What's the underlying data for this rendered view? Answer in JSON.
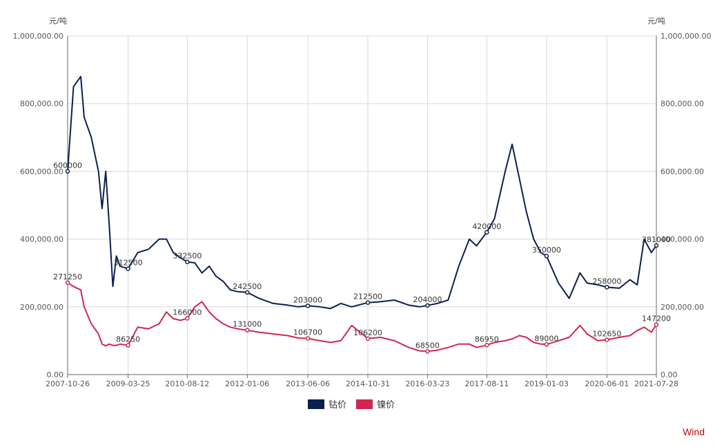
{
  "chart_data": {
    "type": "line",
    "ylabel_left": "元/吨",
    "ylabel_right": "元/吨",
    "ylim": [
      0,
      1000000
    ],
    "y_ticks": [
      "0.00",
      "200,000.00",
      "400,000.00",
      "600,000.00",
      "800,000.00",
      "1,000,000.00"
    ],
    "x_ticks": [
      "2007-10-26",
      "2009-03-25",
      "2010-08-12",
      "2012-01-06",
      "2013-06-06",
      "2014-10-31",
      "2016-03-23",
      "2017-08-11",
      "2019-01-03",
      "2020-06-01",
      "2021-07-28"
    ],
    "grid": true,
    "legend_position": "bottom",
    "x": [
      "2007-10-26",
      "2007-12",
      "2008-02",
      "2008-03",
      "2008-05",
      "2008-07",
      "2008-08",
      "2008-09",
      "2008-10",
      "2008-11",
      "2008-12",
      "2009-01",
      "2009-03-25",
      "2009-06",
      "2009-09",
      "2009-12",
      "2010-02",
      "2010-04",
      "2010-06",
      "2010-08-12",
      "2010-10",
      "2010-12",
      "2011-02",
      "2011-04",
      "2011-06",
      "2011-08",
      "2011-10",
      "2012-01-06",
      "2012-04",
      "2012-08",
      "2012-12",
      "2013-03",
      "2013-06-06",
      "2013-09",
      "2013-12",
      "2014-03",
      "2014-06",
      "2014-10-31",
      "2015-02",
      "2015-06",
      "2015-10",
      "2016-01",
      "2016-03-23",
      "2016-06",
      "2016-09",
      "2016-12",
      "2017-03",
      "2017-05",
      "2017-08-11",
      "2017-10",
      "2018-01",
      "2018-03",
      "2018-05",
      "2018-07",
      "2018-09",
      "2018-11",
      "2019-01-03",
      "2019-04",
      "2019-07",
      "2019-10",
      "2019-12",
      "2020-03",
      "2020-06-01",
      "2020-09",
      "2020-12",
      "2021-02",
      "2021-04",
      "2021-06",
      "2021-07-28"
    ],
    "series": [
      {
        "name": "钴价",
        "color": "#0b1f4e",
        "values": [
          600000,
          850000,
          880000,
          760000,
          700000,
          600000,
          490000,
          600000,
          440000,
          260000,
          350000,
          320000,
          312500,
          360000,
          370000,
          400000,
          400000,
          360000,
          345000,
          332500,
          330000,
          300000,
          320000,
          290000,
          275000,
          250000,
          245000,
          242500,
          225000,
          210000,
          205000,
          200000,
          203000,
          200000,
          195000,
          210000,
          200000,
          212500,
          215000,
          220000,
          205000,
          200000,
          204000,
          210000,
          220000,
          320000,
          400000,
          380000,
          420000,
          460000,
          600000,
          680000,
          580000,
          480000,
          400000,
          360000,
          350000,
          270000,
          225000,
          300000,
          270000,
          265000,
          258000,
          255000,
          280000,
          265000,
          400000,
          360000,
          381000
        ]
      },
      {
        "name": "镍价",
        "color": "#d0264f",
        "values": [
          271250,
          260000,
          250000,
          200000,
          150000,
          120000,
          90000,
          85000,
          90000,
          86250,
          86250,
          90000,
          86250,
          140000,
          135000,
          150000,
          185000,
          165000,
          160000,
          166000,
          200000,
          215000,
          185000,
          165000,
          150000,
          140000,
          135000,
          131000,
          125000,
          120000,
          115000,
          108000,
          106700,
          100000,
          95000,
          100000,
          145000,
          106200,
          110000,
          100000,
          80000,
          70000,
          68500,
          72000,
          80000,
          90000,
          90000,
          80000,
          86950,
          95000,
          100000,
          105000,
          115000,
          110000,
          95000,
          90000,
          89000,
          100000,
          110000,
          145000,
          120000,
          100000,
          102650,
          110000,
          115000,
          130000,
          140000,
          125000,
          147200
        ]
      }
    ],
    "annotations": [
      {
        "series": "钴价",
        "x": "2007-10-26",
        "text": "600000"
      },
      {
        "series": "钴价",
        "x": "2009-03-25",
        "text": "312500"
      },
      {
        "series": "钴价",
        "x": "2010-08-12",
        "text": "332500"
      },
      {
        "series": "钴价",
        "x": "2012-01-06",
        "text": "242500"
      },
      {
        "series": "钴价",
        "x": "2013-06-06",
        "text": "203000"
      },
      {
        "series": "钴价",
        "x": "2014-10-31",
        "text": "212500"
      },
      {
        "series": "钴价",
        "x": "2016-03-23",
        "text": "204000"
      },
      {
        "series": "钴价",
        "x": "2017-08-11",
        "text": "420000"
      },
      {
        "series": "钴价",
        "x": "2019-01-03",
        "text": "350000"
      },
      {
        "series": "钴价",
        "x": "2020-06-01",
        "text": "258000"
      },
      {
        "series": "钴价",
        "x": "2021-07-28",
        "text": "381000"
      },
      {
        "series": "镍价",
        "x": "2007-10-26",
        "text": "271250"
      },
      {
        "series": "镍价",
        "x": "2009-03-25",
        "text": "86250"
      },
      {
        "series": "镍价",
        "x": "2010-08-12",
        "text": "166000"
      },
      {
        "series": "镍价",
        "x": "2012-01-06",
        "text": "131000"
      },
      {
        "series": "镍价",
        "x": "2013-06-06",
        "text": "106700"
      },
      {
        "series": "镍价",
        "x": "2014-10-31",
        "text": "106200"
      },
      {
        "series": "镍价",
        "x": "2016-03-23",
        "text": "68500"
      },
      {
        "series": "镍价",
        "x": "2017-08-11",
        "text": "86950"
      },
      {
        "series": "镍价",
        "x": "2019-01-03",
        "text": "89000"
      },
      {
        "series": "镍价",
        "x": "2020-06-01",
        "text": "102650"
      },
      {
        "series": "镍价",
        "x": "2021-07-28",
        "text": "147200"
      }
    ]
  },
  "legend": {
    "cobalt_label": "钴价",
    "nickel_label": "镍价",
    "cobalt_color": "#0b1f4e",
    "nickel_color": "#d0264f"
  },
  "watermark": {
    "text": "Wind",
    "color": "#cc0000"
  }
}
